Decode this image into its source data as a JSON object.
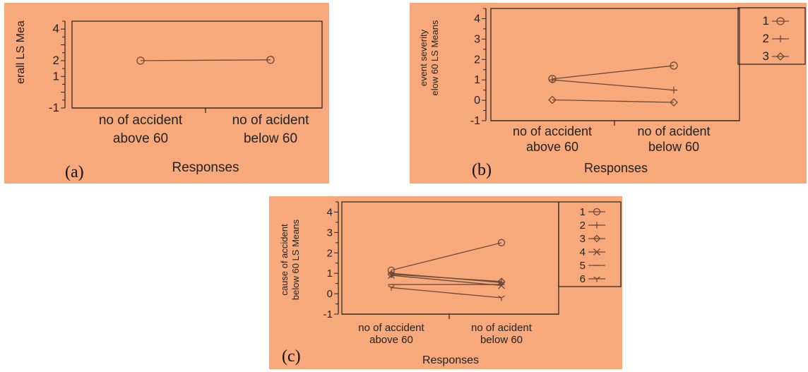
{
  "chart_data": [
    {
      "type": "line",
      "panel_tag": "(a)",
      "ylabel": "erall  LS Mea",
      "xlabel": "Responses",
      "categories": [
        "no of accident\nabove 60",
        "no of acident\nbelow 60"
      ],
      "yticks": [
        "4",
        "2",
        "1",
        "-1"
      ],
      "ylim": [
        -1,
        4.5
      ],
      "grid": false,
      "series": [
        {
          "values": [
            2.0,
            2.05
          ],
          "marker": "circle"
        }
      ]
    },
    {
      "type": "line",
      "panel_tag": "(b)",
      "ylabel": "event severity\nelow 60  LS Means",
      "xlabel": "Responses",
      "categories": [
        "no of accident\nabove 60",
        "no of acident\nbelow 60"
      ],
      "yticks": [
        "4",
        "3",
        "2",
        "1",
        "0",
        "-1"
      ],
      "ylim": [
        -1,
        4.5
      ],
      "grid": false,
      "legend_position": "right",
      "series": [
        {
          "name": "1",
          "values": [
            1.05,
            1.7
          ],
          "marker": "circle"
        },
        {
          "name": "2",
          "values": [
            1.0,
            0.5
          ],
          "marker": "plus"
        },
        {
          "name": "3",
          "values": [
            0.02,
            -0.1
          ],
          "marker": "diamond"
        }
      ]
    },
    {
      "type": "line",
      "panel_tag": "(c)",
      "ylabel": "cause of accident\nbelow 60  LS Means",
      "xlabel": "Responses",
      "categories": [
        "no of accident\nabove 60",
        "no of acident\nbelow 60"
      ],
      "yticks": [
        "4",
        "3",
        "2",
        "1",
        "0",
        "-1"
      ],
      "ylim": [
        -1,
        4.5
      ],
      "grid": false,
      "legend_position": "right",
      "series": [
        {
          "name": "1",
          "values": [
            1.15,
            2.5
          ],
          "marker": "circle"
        },
        {
          "name": "2",
          "values": [
            1.0,
            0.55
          ],
          "marker": "plus"
        },
        {
          "name": "3",
          "values": [
            0.95,
            0.6
          ],
          "marker": "diamond"
        },
        {
          "name": "4",
          "values": [
            0.9,
            0.4
          ],
          "marker": "x"
        },
        {
          "name": "5",
          "values": [
            0.45,
            0.45
          ],
          "marker": "dash"
        },
        {
          "name": "6",
          "values": [
            0.3,
            -0.2
          ],
          "marker": "star"
        }
      ]
    }
  ]
}
